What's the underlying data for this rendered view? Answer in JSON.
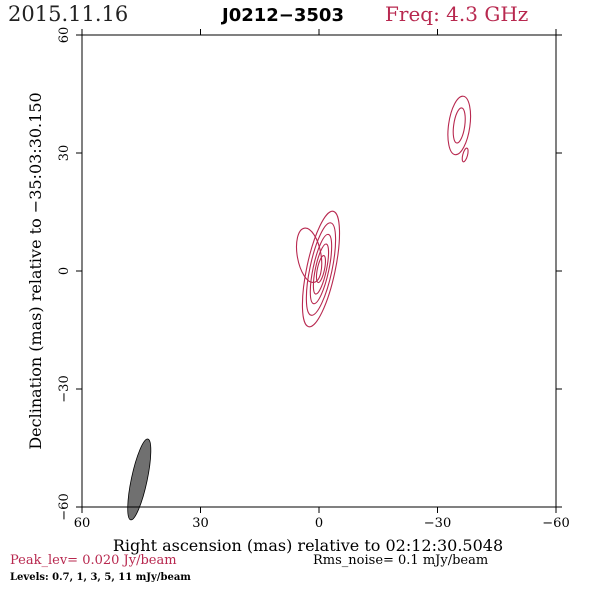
{
  "header": {
    "date": "2015.11.16",
    "source": "J0212−3503",
    "freq": "Freq: 4.3 GHz"
  },
  "footer": {
    "peak": "Peak_lev=  0.020 Jy/beam",
    "rms": "Rms_noise=  0.1 mJy/beam",
    "levels": "Levels: 0.7,   1,   3,   5,   11 mJy/beam"
  },
  "colors": {
    "contour": "#b8284f",
    "beam": "#707070",
    "frame": "#000000"
  },
  "chart_data": {
    "type": "contour",
    "xlabel": "Right ascension (mas) relative to 02:12:30.5048",
    "ylabel": "Declination (mas) relative to −35:03:30.150",
    "xlim": [
      60,
      -60
    ],
    "ylim": [
      -60,
      60
    ],
    "xticks": [
      {
        "value": 60,
        "label": "60"
      },
      {
        "value": 30,
        "label": "30"
      },
      {
        "value": 0,
        "label": "0"
      },
      {
        "value": -30,
        "label": "−30"
      },
      {
        "value": -60,
        "label": "−60"
      }
    ],
    "yticks": [
      {
        "value": -60,
        "label": "−60"
      },
      {
        "value": -30,
        "label": "−30"
      },
      {
        "value": 0,
        "label": "0"
      },
      {
        "value": 30,
        "label": "30"
      },
      {
        "value": 60,
        "label": "60"
      }
    ],
    "contour_levels_mJy": [
      0.7,
      1,
      3,
      5,
      11
    ],
    "components": [
      {
        "name": "core",
        "x": -0.5,
        "y": 0.5,
        "contours": [
          {
            "level": 0.7,
            "rx": 3.6,
            "ry": 15.0,
            "angle": 12
          },
          {
            "level": 1,
            "rx": 2.8,
            "ry": 12.0,
            "angle": 12
          },
          {
            "level": 3,
            "rx": 2.0,
            "ry": 9.0,
            "angle": 12
          },
          {
            "level": 5,
            "rx": 1.4,
            "ry": 6.5,
            "angle": 12
          },
          {
            "level": 11,
            "rx": 0.9,
            "ry": 3.5,
            "angle": 12
          }
        ]
      },
      {
        "name": "extension",
        "x": 2.5,
        "y": 4.0,
        "contours": [
          {
            "level": 0.7,
            "rx": 3.0,
            "ry": 7.0,
            "angle": -10
          }
        ]
      },
      {
        "name": "jet",
        "x": -35.5,
        "y": 37.0,
        "contours": [
          {
            "level": 0.7,
            "rx": 2.7,
            "ry": 7.5,
            "angle": 8
          },
          {
            "level": 1,
            "rx": 1.4,
            "ry": 4.5,
            "angle": 8
          }
        ]
      },
      {
        "name": "jet-knot",
        "x": -37.0,
        "y": 29.5,
        "contours": [
          {
            "level": 0.7,
            "rx": 0.6,
            "ry": 1.8,
            "angle": 15
          }
        ]
      }
    ],
    "beam": {
      "x": 45.5,
      "y": -53.0,
      "major": 10.5,
      "minor": 2.0,
      "angle": 12
    }
  }
}
